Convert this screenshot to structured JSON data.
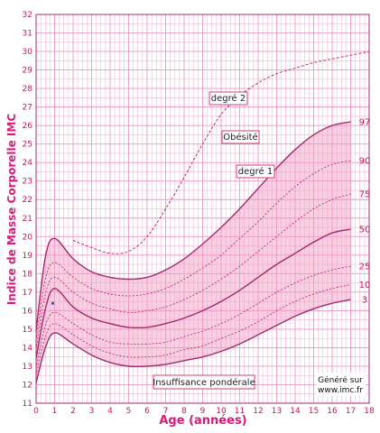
{
  "chart_data": {
    "type": "line",
    "xlabel": "Age (années)",
    "ylabel": "Indice de Masse Corporelle  IMC",
    "xlim": [
      0,
      18
    ],
    "ylim": [
      11,
      32
    ],
    "xticks": [
      "0",
      "1",
      "2",
      "3",
      "4",
      "5",
      "6",
      "7",
      "8",
      "9",
      "10",
      "11",
      "12",
      "13",
      "14",
      "15",
      "16",
      "17",
      "18"
    ],
    "yticks": [
      "11",
      "12",
      "13",
      "14",
      "15",
      "16",
      "17",
      "18",
      "19",
      "20",
      "21",
      "22",
      "23",
      "24",
      "25",
      "26",
      "27",
      "28",
      "29",
      "30",
      "31",
      "32"
    ],
    "grid": true,
    "x": [
      0,
      0.5,
      1,
      2,
      3,
      4,
      5,
      6,
      7,
      8,
      9,
      10,
      11,
      12,
      13,
      14,
      15,
      16,
      17
    ],
    "series": [
      {
        "name": "3",
        "values": [
          12.1,
          14.0,
          14.8,
          14.2,
          13.6,
          13.2,
          13.0,
          13.0,
          13.1,
          13.3,
          13.5,
          13.8,
          14.2,
          14.7,
          15.2,
          15.7,
          16.1,
          16.4,
          16.6
        ]
      },
      {
        "name": "10",
        "values": [
          12.5,
          14.6,
          15.3,
          14.7,
          14.1,
          13.7,
          13.5,
          13.5,
          13.6,
          13.9,
          14.1,
          14.5,
          14.9,
          15.4,
          16.0,
          16.5,
          16.9,
          17.2,
          17.4
        ]
      },
      {
        "name": "25",
        "values": [
          12.9,
          15.2,
          15.9,
          15.3,
          14.7,
          14.3,
          14.2,
          14.2,
          14.3,
          14.6,
          14.9,
          15.3,
          15.8,
          16.4,
          17.0,
          17.5,
          17.9,
          18.2,
          18.4
        ]
      },
      {
        "name": "50",
        "values": [
          13.4,
          16.1,
          17.2,
          16.2,
          15.6,
          15.3,
          15.1,
          15.1,
          15.3,
          15.6,
          16.0,
          16.5,
          17.1,
          17.8,
          18.5,
          19.1,
          19.7,
          20.2,
          20.4
        ]
      },
      {
        "name": "75",
        "values": [
          13.9,
          16.9,
          17.8,
          17.0,
          16.4,
          16.1,
          15.9,
          16.0,
          16.2,
          16.6,
          17.1,
          17.7,
          18.4,
          19.2,
          20.0,
          20.8,
          21.5,
          22.0,
          22.3
        ]
      },
      {
        "name": "90",
        "values": [
          14.4,
          17.7,
          18.6,
          17.8,
          17.2,
          16.9,
          16.8,
          16.9,
          17.2,
          17.7,
          18.3,
          19.0,
          19.9,
          20.8,
          21.8,
          22.7,
          23.4,
          23.9,
          24.1
        ]
      },
      {
        "name": "97",
        "values": [
          14.9,
          18.9,
          19.9,
          18.8,
          18.1,
          17.8,
          17.7,
          17.8,
          18.2,
          18.8,
          19.6,
          20.5,
          21.5,
          22.6,
          23.7,
          24.7,
          25.5,
          26.0,
          26.2
        ]
      }
    ],
    "obesity_degre2_curve": {
      "x": [
        2,
        3,
        4,
        5,
        6,
        7,
        8,
        9,
        10,
        11,
        12,
        13,
        14,
        15,
        16,
        17,
        18
      ],
      "values": [
        19.8,
        19.4,
        19.1,
        19.2,
        20.0,
        21.5,
        23.2,
        25.0,
        26.6,
        27.6,
        28.3,
        28.8,
        29.1,
        29.4,
        29.6,
        29.8,
        30.0
      ]
    },
    "annotations": {
      "degre2": "degré 2",
      "obesite": "Obésité",
      "degre1": "degré 1",
      "insuffisance": "Insuffisance pondérale",
      "credit_line1": "Généré sur",
      "credit_line2": "www.imc.fr"
    },
    "marker": {
      "x": 0.9,
      "y": 16.4
    }
  },
  "colors": {
    "grid": "#ec99c3",
    "band": "#f9cfe2",
    "curve": "#a4286f",
    "curve_dashed": "#c2185b",
    "axis_title": "#d81b7a"
  }
}
